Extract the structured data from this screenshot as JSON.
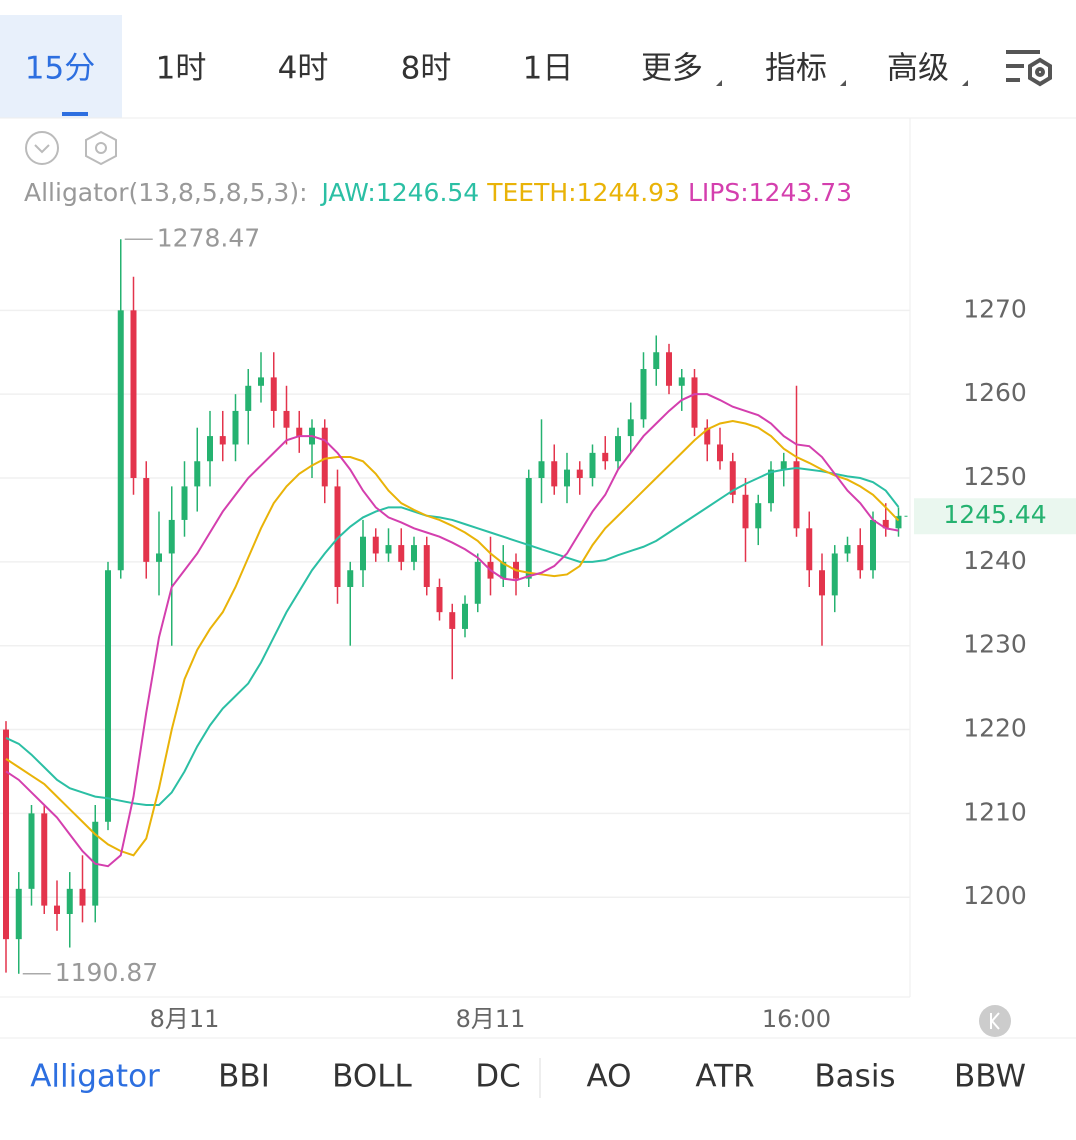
{
  "tabs": {
    "items": [
      "15分",
      "1时",
      "4时",
      "8时",
      "1日",
      "更多",
      "指标",
      "高级"
    ],
    "selected": 0
  },
  "chart_data": {
    "type": "candlestick",
    "indicator": "Alligator(13,8,5,8,5,3):",
    "up_color": "#25b270",
    "down_color": "#e3344c",
    "ylim": [
      1188.1,
      1292.7
    ],
    "yticks": [
      1200,
      1210,
      1220,
      1230,
      1240,
      1250,
      1260,
      1270
    ],
    "grid": true,
    "categories": [
      null,
      null,
      null,
      null,
      null,
      null,
      null,
      null,
      null,
      null,
      null,
      null,
      null,
      null,
      "8月11",
      null,
      null,
      null,
      null,
      null,
      null,
      null,
      null,
      null,
      null,
      null,
      null,
      null,
      null,
      null,
      null,
      null,
      null,
      null,
      null,
      null,
      null,
      null,
      "8月11",
      null,
      null,
      null,
      null,
      null,
      null,
      null,
      null,
      null,
      null,
      null,
      null,
      null,
      null,
      null,
      null,
      null,
      null,
      null,
      null,
      null,
      null,
      null,
      "16:00",
      null,
      null,
      null,
      null,
      null,
      null,
      null,
      null
    ],
    "candles": [
      [
        1220,
        1221,
        1191,
        1195
      ],
      [
        1195,
        1203,
        1190.87,
        1201
      ],
      [
        1201,
        1211,
        1199,
        1210
      ],
      [
        1210,
        1211,
        1198,
        1199
      ],
      [
        1199,
        1202,
        1196,
        1198
      ],
      [
        1198,
        1203,
        1194,
        1201
      ],
      [
        1201,
        1205,
        1197,
        1199
      ],
      [
        1199,
        1211,
        1197,
        1209
      ],
      [
        1209,
        1240,
        1208,
        1239
      ],
      [
        1239,
        1278.47,
        1238,
        1270
      ],
      [
        1270,
        1274,
        1248,
        1250
      ],
      [
        1250,
        1252,
        1238,
        1240
      ],
      [
        1240,
        1246,
        1236,
        1241
      ],
      [
        1241,
        1249,
        1230,
        1245
      ],
      [
        1245,
        1252,
        1243,
        1249
      ],
      [
        1249,
        1256,
        1246,
        1252
      ],
      [
        1252,
        1258,
        1249,
        1255
      ],
      [
        1255,
        1258,
        1252,
        1254
      ],
      [
        1254,
        1260,
        1252,
        1258
      ],
      [
        1258,
        1263,
        1254,
        1261
      ],
      [
        1261,
        1265,
        1259,
        1262
      ],
      [
        1262,
        1265,
        1256,
        1258
      ],
      [
        1258,
        1261,
        1254,
        1256
      ],
      [
        1256,
        1258,
        1253,
        1255
      ],
      [
        1254,
        1257,
        1250,
        1256
      ],
      [
        1256,
        1257,
        1247,
        1249
      ],
      [
        1249,
        1251,
        1235,
        1237
      ],
      [
        1237,
        1240,
        1230,
        1239
      ],
      [
        1239,
        1245,
        1237,
        1243
      ],
      [
        1243,
        1244,
        1240,
        1241
      ],
      [
        1241,
        1244,
        1240,
        1242
      ],
      [
        1242,
        1244,
        1239,
        1240
      ],
      [
        1240,
        1243,
        1239,
        1242
      ],
      [
        1242,
        1243,
        1236,
        1237
      ],
      [
        1237,
        1238,
        1233,
        1234
      ],
      [
        1234,
        1235,
        1226,
        1232
      ],
      [
        1232,
        1236,
        1231,
        1235
      ],
      [
        1235,
        1241,
        1234,
        1240
      ],
      [
        1240,
        1243,
        1236,
        1238
      ],
      [
        1238,
        1242,
        1237,
        1240
      ],
      [
        1240,
        1241,
        1236,
        1238
      ],
      [
        1238,
        1251,
        1237,
        1250
      ],
      [
        1250,
        1257,
        1247,
        1252
      ],
      [
        1252,
        1254,
        1248,
        1249
      ],
      [
        1249,
        1253,
        1247,
        1251
      ],
      [
        1251,
        1252,
        1248,
        1250
      ],
      [
        1250,
        1254,
        1249,
        1253
      ],
      [
        1253,
        1255,
        1251,
        1252
      ],
      [
        1252,
        1256,
        1251,
        1255
      ],
      [
        1255,
        1259,
        1253,
        1257
      ],
      [
        1257,
        1265,
        1256,
        1263
      ],
      [
        1263,
        1267,
        1261,
        1265
      ],
      [
        1265,
        1266,
        1260,
        1261
      ],
      [
        1261,
        1263,
        1258,
        1262
      ],
      [
        1262,
        1263,
        1255,
        1256
      ],
      [
        1256,
        1257,
        1252,
        1254
      ],
      [
        1254,
        1256,
        1251,
        1252
      ],
      [
        1252,
        1253,
        1247,
        1248
      ],
      [
        1248,
        1250,
        1240,
        1244
      ],
      [
        1244,
        1248,
        1242,
        1247
      ],
      [
        1247,
        1252,
        1246,
        1251
      ],
      [
        1251,
        1253,
        1249,
        1252
      ],
      [
        1252,
        1261,
        1243,
        1244
      ],
      [
        1244,
        1246,
        1237,
        1239
      ],
      [
        1239,
        1241,
        1230,
        1236
      ],
      [
        1236,
        1242,
        1234,
        1241
      ],
      [
        1241,
        1243,
        1240,
        1242
      ],
      [
        1242,
        1244,
        1238,
        1239
      ],
      [
        1239,
        1246,
        1238,
        1245
      ],
      [
        1245,
        1247,
        1243,
        1244
      ],
      [
        1244,
        1246.5,
        1243,
        1245.44
      ]
    ],
    "series": [
      {
        "name": "JAW:",
        "color": "#2bbfa4",
        "values": [
          1219,
          1218.3,
          1217,
          1215.5,
          1214,
          1213,
          1212.5,
          1212,
          1211.8,
          1211.5,
          1211.2,
          1211,
          1211,
          1212.5,
          1215,
          1218,
          1220.5,
          1222.5,
          1224,
          1225.5,
          1228,
          1231,
          1234,
          1236.5,
          1239,
          1241,
          1242.8,
          1244.2,
          1245.3,
          1246,
          1246.5,
          1246.5,
          1246,
          1245.5,
          1245.3,
          1245,
          1244.5,
          1244,
          1243.5,
          1243,
          1242.5,
          1242,
          1241.5,
          1241,
          1240.5,
          1240,
          1240,
          1240.2,
          1240.8,
          1241.3,
          1241.8,
          1242.5,
          1243.5,
          1244.5,
          1245.5,
          1246.5,
          1247.5,
          1248.5,
          1249.3,
          1250,
          1250.7,
          1251,
          1251.2,
          1251,
          1250.8,
          1250.5,
          1250.2,
          1250,
          1249.5,
          1248.5,
          1246.54
        ]
      },
      {
        "name": "TEETH:",
        "color": "#e9b308",
        "values": [
          1216.5,
          1215.5,
          1214.5,
          1213.5,
          1212,
          1210.5,
          1209,
          1207.5,
          1206.3,
          1205.5,
          1205,
          1207,
          1213,
          1220,
          1226,
          1229.5,
          1232,
          1234,
          1237,
          1240.5,
          1244,
          1247,
          1249,
          1250.5,
          1251.5,
          1252.3,
          1252.5,
          1252.5,
          1252,
          1250.5,
          1248.5,
          1247,
          1246.2,
          1245.5,
          1245,
          1244.3,
          1243.5,
          1242.5,
          1241,
          1239.8,
          1239,
          1238.7,
          1238.5,
          1238.3,
          1238.5,
          1239.5,
          1242,
          1244,
          1245.5,
          1247,
          1248.5,
          1250,
          1251.5,
          1253,
          1254.5,
          1255.8,
          1256.5,
          1256.8,
          1256.5,
          1256,
          1255,
          1253.5,
          1252.5,
          1251.8,
          1251,
          1250.3,
          1249.8,
          1249,
          1248,
          1246.5,
          1244.93
        ]
      },
      {
        "name": "LIPS:",
        "color": "#d43fae",
        "values": [
          1215,
          1214,
          1212.5,
          1211,
          1209.5,
          1207.5,
          1205.5,
          1204,
          1203.7,
          1205,
          1212,
          1222,
          1231,
          1237,
          1239,
          1241,
          1243.5,
          1246,
          1248,
          1250,
          1251.5,
          1253,
          1254.5,
          1255,
          1255,
          1254.5,
          1253,
          1251,
          1248.5,
          1246.5,
          1245.3,
          1244.7,
          1244,
          1243.5,
          1243,
          1242.3,
          1241.5,
          1240.5,
          1239,
          1238,
          1237.8,
          1238.3,
          1238.7,
          1239.5,
          1241,
          1243.5,
          1246,
          1248,
          1251,
          1253,
          1255,
          1256.5,
          1258,
          1259.3,
          1260,
          1260,
          1259.3,
          1258.5,
          1258,
          1257.5,
          1256.5,
          1255,
          1254,
          1253.8,
          1252.5,
          1250.5,
          1248.5,
          1247,
          1245,
          1244,
          1243.73
        ]
      }
    ]
  },
  "indicator_tabs": {
    "items": [
      "Alligator",
      "BBI",
      "BOLL",
      "DC",
      "AO",
      "ATR",
      "Basis",
      "BBW"
    ],
    "selected": 0
  }
}
